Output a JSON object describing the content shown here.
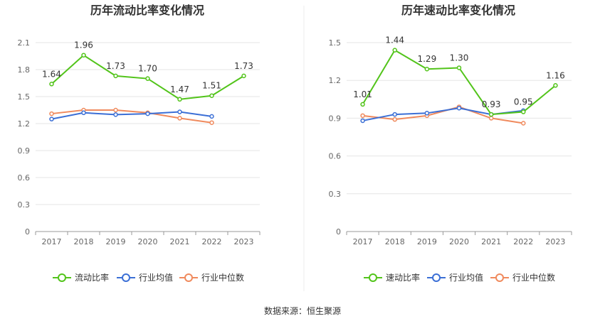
{
  "chart_data": [
    {
      "type": "line",
      "title": "历年流动比率变化情况",
      "categories": [
        "2017",
        "2018",
        "2019",
        "2020",
        "2021",
        "2022",
        "2023"
      ],
      "y_ticks": [
        "0",
        "0.3",
        "0.6",
        "0.9",
        "1.2",
        "1.5",
        "1.8",
        "2.1"
      ],
      "ylim": [
        0,
        2.1
      ],
      "grid": true,
      "legend_position": "bottom",
      "series": [
        {
          "name": "流动比率",
          "color": "#52c41a",
          "values": [
            1.64,
            1.96,
            1.73,
            1.7,
            1.47,
            1.51,
            1.73
          ],
          "labels": [
            "1.64",
            "1.96",
            "1.73",
            "1.70",
            "1.47",
            "1.51",
            "1.73"
          ]
        },
        {
          "name": "行业均值",
          "color": "#3b6fd6",
          "values": [
            1.25,
            1.32,
            1.3,
            1.31,
            1.33,
            1.28,
            null
          ]
        },
        {
          "name": "行业中位数",
          "color": "#f08a5d",
          "values": [
            1.31,
            1.35,
            1.35,
            1.32,
            1.26,
            1.21,
            null
          ]
        }
      ]
    },
    {
      "type": "line",
      "title": "历年速动比率变化情况",
      "categories": [
        "2017",
        "2018",
        "2019",
        "2020",
        "2021",
        "2022",
        "2023"
      ],
      "y_ticks": [
        "0",
        "0.3",
        "0.6",
        "0.9",
        "1.2",
        "1.5"
      ],
      "ylim": [
        0,
        1.5
      ],
      "grid": true,
      "legend_position": "bottom",
      "series": [
        {
          "name": "速动比率",
          "color": "#52c41a",
          "values": [
            1.01,
            1.44,
            1.29,
            1.3,
            0.93,
            0.95,
            1.16
          ],
          "labels": [
            "1.01",
            "1.44",
            "1.29",
            "1.30",
            "0.93",
            "0.95",
            "1.16"
          ]
        },
        {
          "name": "行业均值",
          "color": "#3b6fd6",
          "values": [
            0.88,
            0.93,
            0.94,
            0.98,
            0.93,
            0.96,
            null
          ]
        },
        {
          "name": "行业中位数",
          "color": "#f08a5d",
          "values": [
            0.92,
            0.89,
            0.92,
            0.99,
            0.9,
            0.86,
            null
          ]
        }
      ]
    }
  ],
  "source": "数据来源：恒生聚源"
}
